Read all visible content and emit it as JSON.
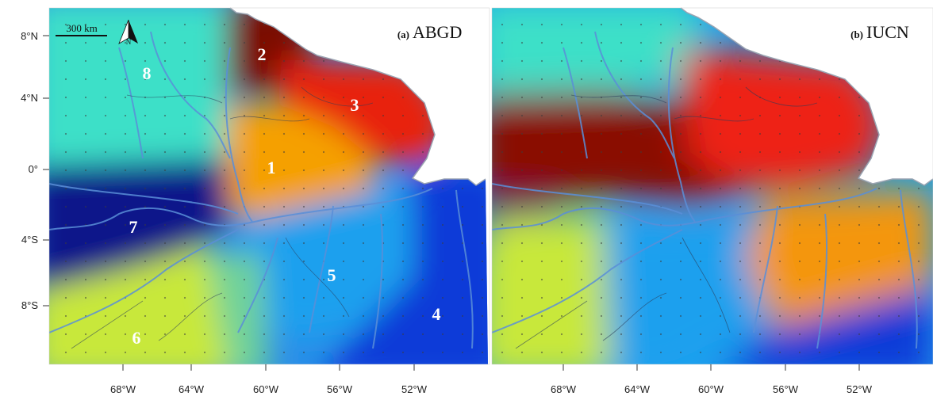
{
  "panels": [
    {
      "id": "a",
      "letter": "(a)",
      "title": "ABGD",
      "scale_bar": "300 km",
      "north_label": "N",
      "regions": [
        {
          "label": "1",
          "color": "#f5a000"
        },
        {
          "label": "2",
          "color": "#7a0800"
        },
        {
          "label": "3",
          "color": "#e8200c"
        },
        {
          "label": "4",
          "color": "#0a3ad8"
        },
        {
          "label": "5",
          "color": "#1aa0ee"
        },
        {
          "label": "6",
          "color": "#c8e83a"
        },
        {
          "label": "7",
          "color": "#08138a"
        },
        {
          "label": "8",
          "color": "#3ee0c8"
        }
      ]
    },
    {
      "id": "b",
      "letter": "(b)",
      "title": "IUCN"
    }
  ],
  "y_ticks": [
    "8°N",
    "4°N",
    "0°",
    "4°S",
    "8°S"
  ],
  "x_ticks": [
    "68°W",
    "64°W",
    "60°W",
    "56°W",
    "52°W"
  ]
}
